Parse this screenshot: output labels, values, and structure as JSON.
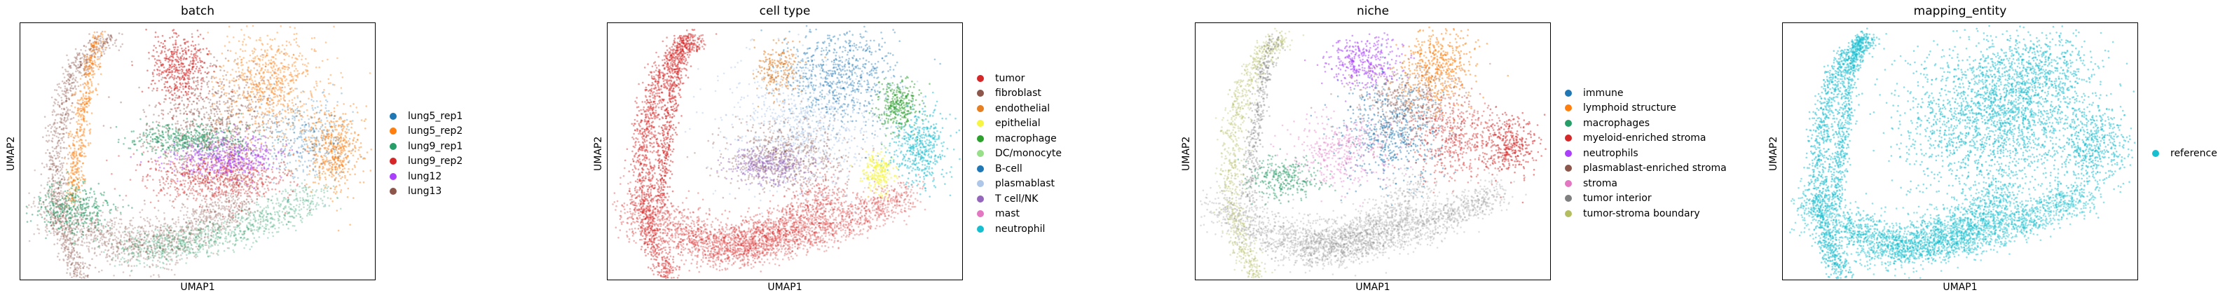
{
  "chart_data": [
    {
      "type": "scatter",
      "title": "batch",
      "xlabel": "UMAP1",
      "ylabel": "UMAP2",
      "legend_position": "right",
      "categories": [
        "lung5_rep1",
        "lung5_rep2",
        "lung9_rep1",
        "lung9_rep2",
        "lung12",
        "lung13"
      ],
      "colors": [
        "#1f77b4",
        "#ff7f0e",
        "#279e68",
        "#d62728",
        "#aa40fc",
        "#8c564b"
      ]
    },
    {
      "type": "scatter",
      "title": "cell type",
      "xlabel": "UMAP1",
      "ylabel": "UMAP2",
      "legend_position": "right",
      "categories": [
        "tumor",
        "fibroblast",
        "endothelial",
        "epithelial",
        "macrophage",
        "DC/monocyte",
        "B-cell",
        "plasmablast",
        "T cell/NK",
        "mast",
        "neutrophil"
      ],
      "colors": [
        "#d62728",
        "#8c564b",
        "#e67e22",
        "#f5f542",
        "#2ca02c",
        "#98df8a",
        "#1f77b4",
        "#aec7e8",
        "#9467bd",
        "#e377c2",
        "#17becf"
      ]
    },
    {
      "type": "scatter",
      "title": "niche",
      "xlabel": "UMAP1",
      "ylabel": "UMAP2",
      "legend_position": "right",
      "categories": [
        "immune",
        "lymphoid structure",
        "macrophages",
        "myeloid-enriched stroma",
        "neutrophils",
        "plasmablast-enriched stroma",
        "stroma",
        "tumor interior",
        "tumor-stroma boundary"
      ],
      "colors": [
        "#1f77b4",
        "#ff7f0e",
        "#279e68",
        "#d62728",
        "#aa40fc",
        "#8c564b",
        "#e377c2",
        "#7f7f7f",
        "#b5bd61"
      ]
    },
    {
      "type": "scatter",
      "title": "mapping_entity",
      "xlabel": "UMAP1",
      "ylabel": "UMAP2",
      "legend_position": "right",
      "categories": [
        "reference"
      ],
      "colors": [
        "#17becf"
      ]
    }
  ]
}
